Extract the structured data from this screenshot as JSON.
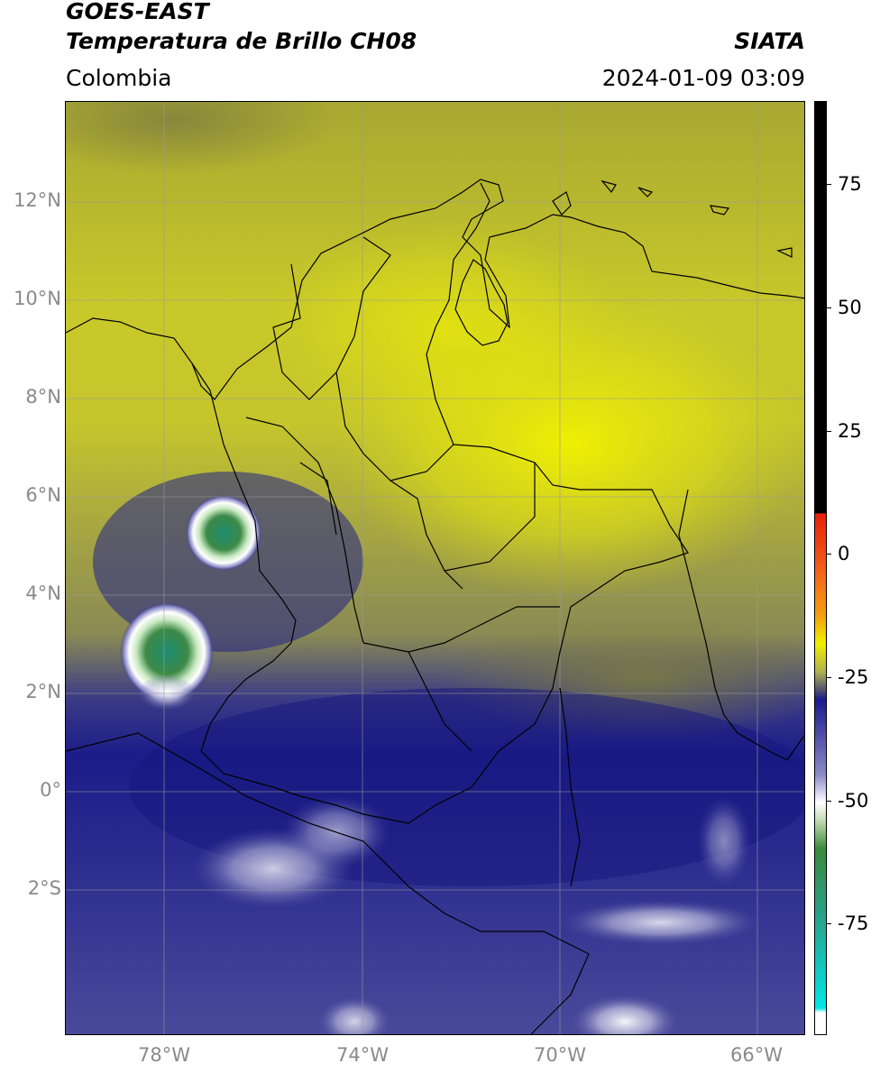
{
  "header": {
    "title_line1": "GOES-EAST",
    "title_line2": "Temperatura de Brillo CH08",
    "brand": "SIATA",
    "region": "Colombia",
    "datetime": "2024-01-09 03:09"
  },
  "map": {
    "lat_labels": [
      "12°N",
      "10°N",
      "8°N",
      "6°N",
      "4°N",
      "2°N",
      "0°",
      "2°S"
    ],
    "lon_labels": [
      "78°W",
      "74°W",
      "70°W",
      "66°W"
    ],
    "gridlines": true
  },
  "colorbar": {
    "tick_labels": [
      "75",
      "50",
      "25",
      "0",
      "-25",
      "-50",
      "-75"
    ],
    "colors": {
      "black": "#000000",
      "red": "#e8200a",
      "orange": "#f59a10",
      "yellow": "#f0f000",
      "olive": "#8f8f3a",
      "navy": "#1a1a8c",
      "white": "#ffffff",
      "green": "#3a8a3a",
      "teal": "#1ec8b4",
      "cyan": "#00e6e6"
    }
  }
}
